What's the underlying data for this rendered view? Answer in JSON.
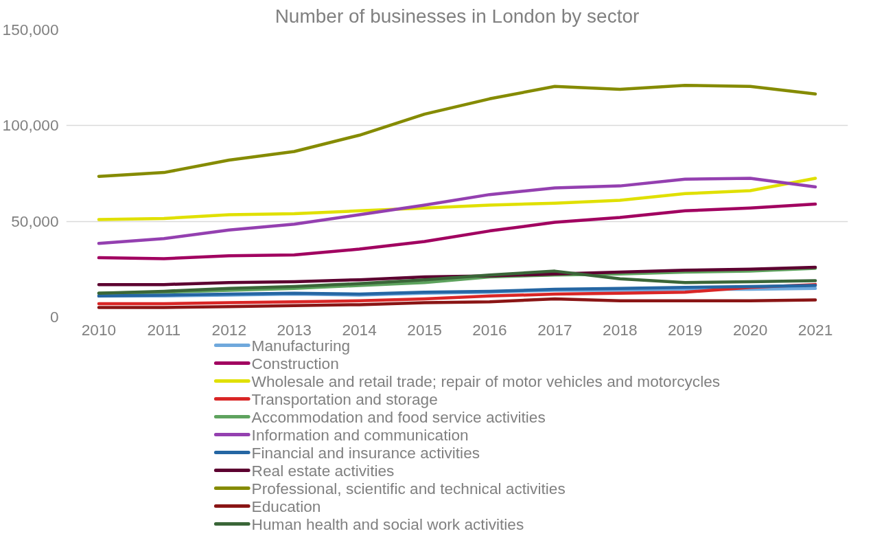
{
  "chart_data": {
    "type": "line",
    "title": "Number of businesses in London by sector",
    "x": [
      2010,
      2011,
      2012,
      2013,
      2014,
      2015,
      2016,
      2017,
      2018,
      2019,
      2020,
      2021
    ],
    "xlim": [
      2009.5,
      2021.5
    ],
    "xticks": [
      2010,
      2011,
      2012,
      2013,
      2014,
      2015,
      2016,
      2017,
      2018,
      2019,
      2020,
      2021
    ],
    "ylim": [
      0,
      150000
    ],
    "yticks": [
      {
        "value": 0,
        "label": "0"
      },
      {
        "value": 50000,
        "label": "50,000"
      },
      {
        "value": 100000,
        "label": "100,000"
      },
      {
        "value": 150000,
        "label": "150,000"
      }
    ],
    "grid": "y",
    "legend": "bottom",
    "marker": "none",
    "line_style": "solid",
    "series": [
      {
        "name": "Manufacturing",
        "color": "#6fa8dc",
        "values": [
          11000,
          11000,
          11500,
          12000,
          11500,
          12500,
          13000,
          14000,
          14000,
          14500,
          14500,
          15000
        ]
      },
      {
        "name": "Construction",
        "color": "#a10060",
        "values": [
          31000,
          30500,
          32000,
          32500,
          35500,
          39500,
          45000,
          49500,
          52000,
          55500,
          57000,
          59000
        ]
      },
      {
        "name": "Wholesale and retail trade; repair of motor vehicles and motorcycles",
        "color": "#e0e000",
        "values": [
          51000,
          51500,
          53500,
          54000,
          55500,
          57000,
          58500,
          59500,
          61000,
          64500,
          66000,
          72500
        ]
      },
      {
        "name": "Transportation and storage",
        "color": "#d92626",
        "values": [
          7000,
          7000,
          7500,
          8000,
          8500,
          9500,
          11000,
          12000,
          12500,
          13000,
          15500,
          17000
        ]
      },
      {
        "name": "Accommodation and food service activities",
        "color": "#5ea35e",
        "values": [
          12500,
          13000,
          14000,
          15000,
          16500,
          18000,
          21000,
          22000,
          22500,
          23500,
          24000,
          25500
        ]
      },
      {
        "name": "Information and communication",
        "color": "#9440b0",
        "values": [
          38500,
          41000,
          45500,
          48500,
          53500,
          58500,
          64000,
          67500,
          68500,
          72000,
          72500,
          68000
        ]
      },
      {
        "name": "Financial and insurance activities",
        "color": "#2566a3",
        "values": [
          11000,
          11500,
          12000,
          12500,
          12000,
          13000,
          13500,
          14500,
          15000,
          15500,
          16000,
          16500
        ]
      },
      {
        "name": "Real estate activities",
        "color": "#5c0030",
        "values": [
          17000,
          17000,
          18000,
          18500,
          19500,
          21000,
          21500,
          22500,
          23500,
          24500,
          25000,
          26000
        ]
      },
      {
        "name": "Professional, scientific and technical activities",
        "color": "#858b00",
        "values": [
          73500,
          75500,
          82000,
          86500,
          95000,
          106000,
          114000,
          120500,
          119000,
          121000,
          120500,
          116500
        ]
      },
      {
        "name": "Education",
        "color": "#8a1515",
        "values": [
          5000,
          5000,
          5500,
          6000,
          6500,
          7500,
          8000,
          9500,
          8500,
          8500,
          8500,
          9000
        ]
      },
      {
        "name": "Human health and social work activities",
        "color": "#3a6638",
        "values": [
          12500,
          13500,
          15000,
          16000,
          17500,
          19500,
          22000,
          24000,
          20000,
          18000,
          18500,
          19000
        ]
      }
    ]
  }
}
